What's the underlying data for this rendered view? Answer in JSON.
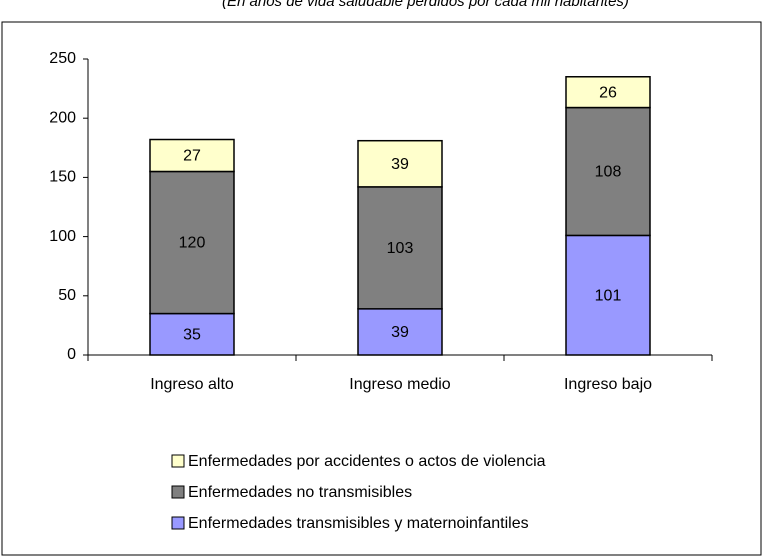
{
  "chart_data": {
    "type": "stacked_bar",
    "subtitle": "(En años de vida saludable perdidos por cada mil  habitantes)",
    "categories": [
      "Ingreso alto",
      "Ingreso medio",
      "Ingreso bajo"
    ],
    "series": [
      {
        "name": "Enfermedades transmisibles y maternoinfantiles",
        "color": "#9999ff",
        "values": [
          35,
          39,
          101
        ]
      },
      {
        "name": "Enfermedades no transmisibles",
        "color": "#808080",
        "values": [
          120,
          103,
          108
        ]
      },
      {
        "name": "Enfermedades por accidentes o actos de violencia",
        "color": "#ffffcc",
        "values": [
          27,
          39,
          26
        ]
      }
    ],
    "ylim": [
      0,
      250
    ],
    "yticks": [
      0,
      50,
      100,
      150,
      200,
      250
    ],
    "grid": false
  }
}
